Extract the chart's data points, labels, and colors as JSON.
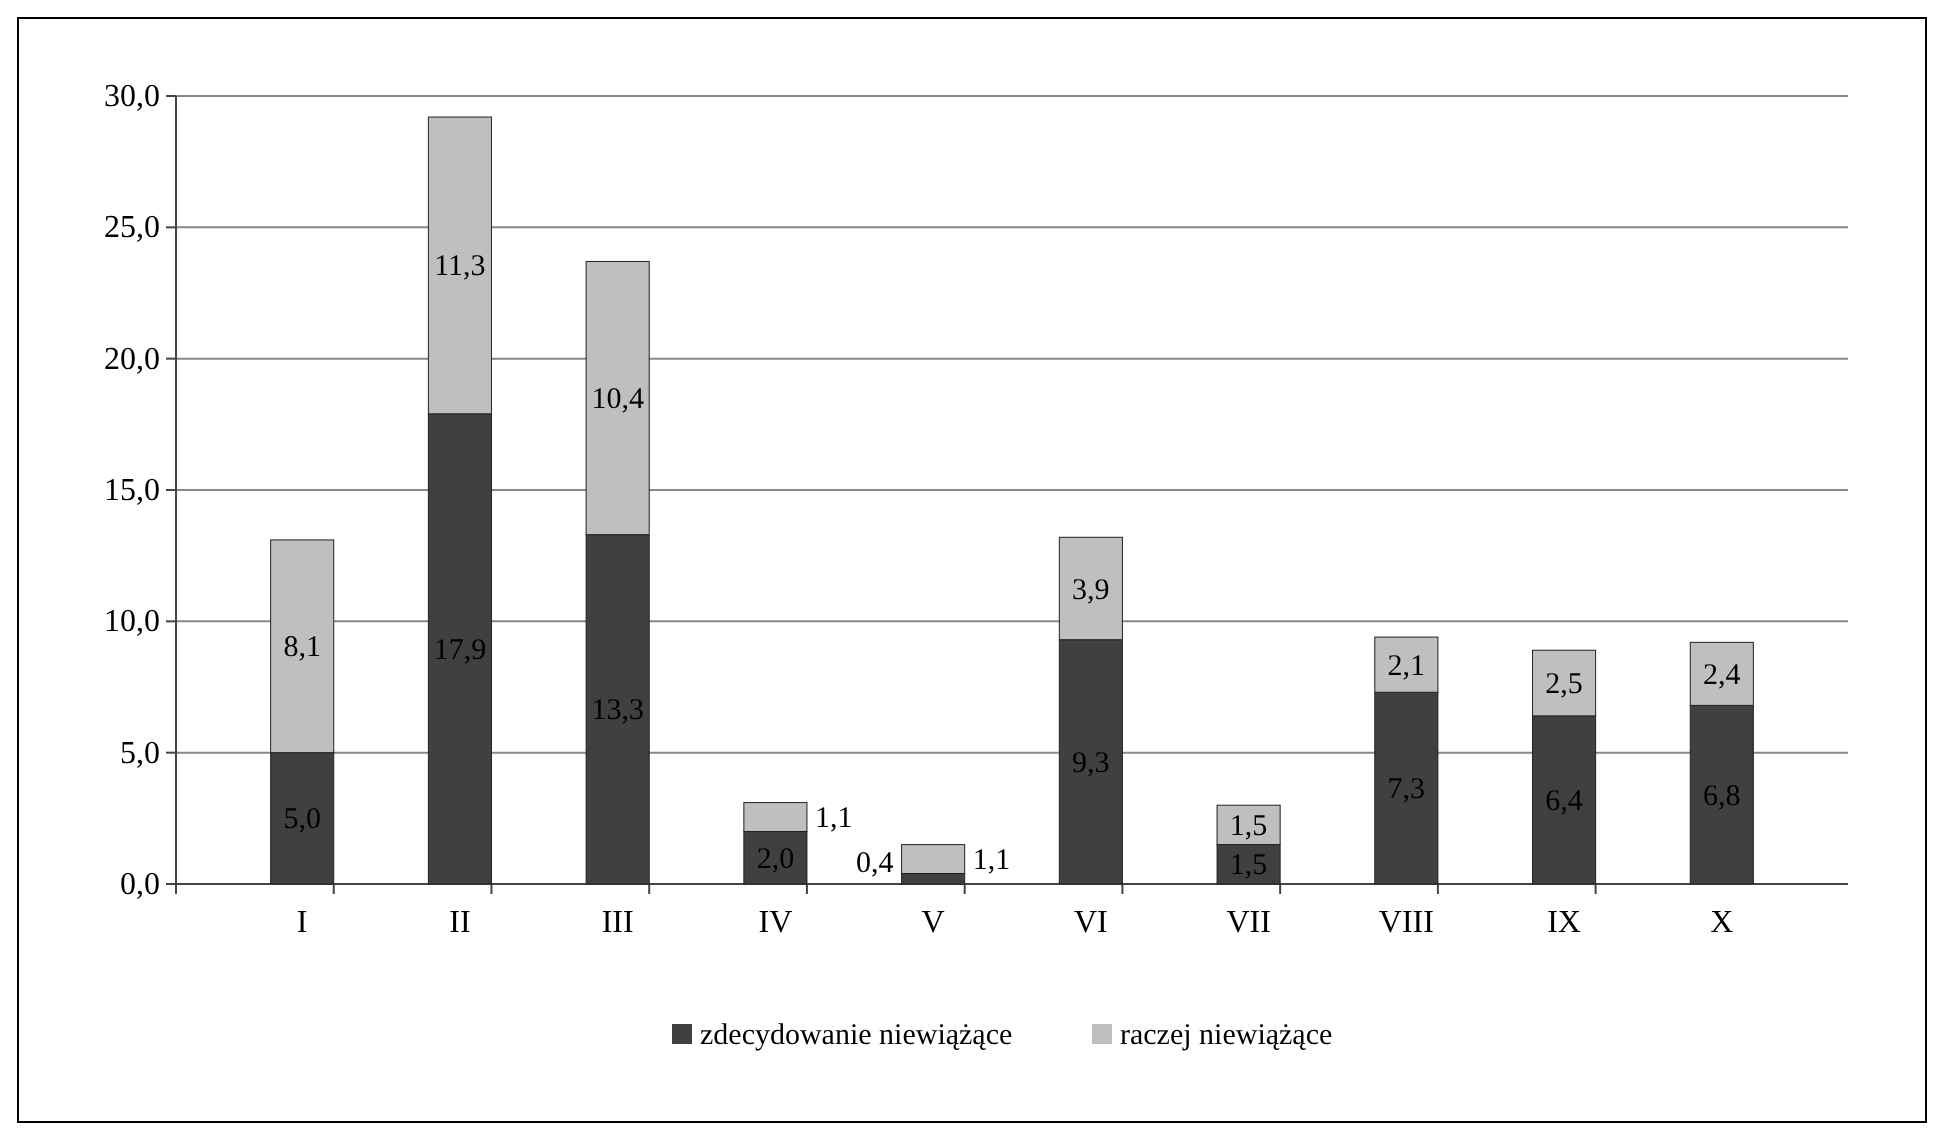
{
  "chart_data": {
    "type": "bar",
    "stacked": true,
    "categories": [
      "I",
      "II",
      "III",
      "IV",
      "V",
      "VI",
      "VII",
      "VIII",
      "IX",
      "X"
    ],
    "series": [
      {
        "name": "zdecydowanie niewiążące",
        "color": "#404040",
        "values": [
          5.0,
          17.9,
          13.3,
          2.0,
          0.4,
          9.3,
          1.5,
          7.3,
          6.4,
          6.8
        ],
        "value_labels": [
          "5,0",
          "17,9",
          "13,3",
          "2,0",
          "0,4",
          "9,3",
          "1,5",
          "7,3",
          "6,4",
          "6,8"
        ]
      },
      {
        "name": "raczej niewiążące",
        "color": "#bfbfbf",
        "values": [
          8.1,
          11.3,
          10.4,
          1.1,
          1.1,
          3.9,
          1.5,
          2.1,
          2.5,
          2.4
        ],
        "value_labels": [
          "8,1",
          "11,3",
          "10,4",
          "1,1",
          "1,1",
          "3,9",
          "1,5",
          "2,1",
          "2,5",
          "2,4"
        ]
      }
    ],
    "ylim": [
      0,
      30
    ],
    "yticks": [
      {
        "value": 0,
        "label": "0,0"
      },
      {
        "value": 5,
        "label": "5,0"
      },
      {
        "value": 10,
        "label": "10,0"
      },
      {
        "value": 15,
        "label": "15,0"
      },
      {
        "value": 20,
        "label": "20,0"
      },
      {
        "value": 25,
        "label": "25,0"
      },
      {
        "value": 30,
        "label": "30,0"
      }
    ],
    "grid": "y",
    "legend": "bottom"
  }
}
